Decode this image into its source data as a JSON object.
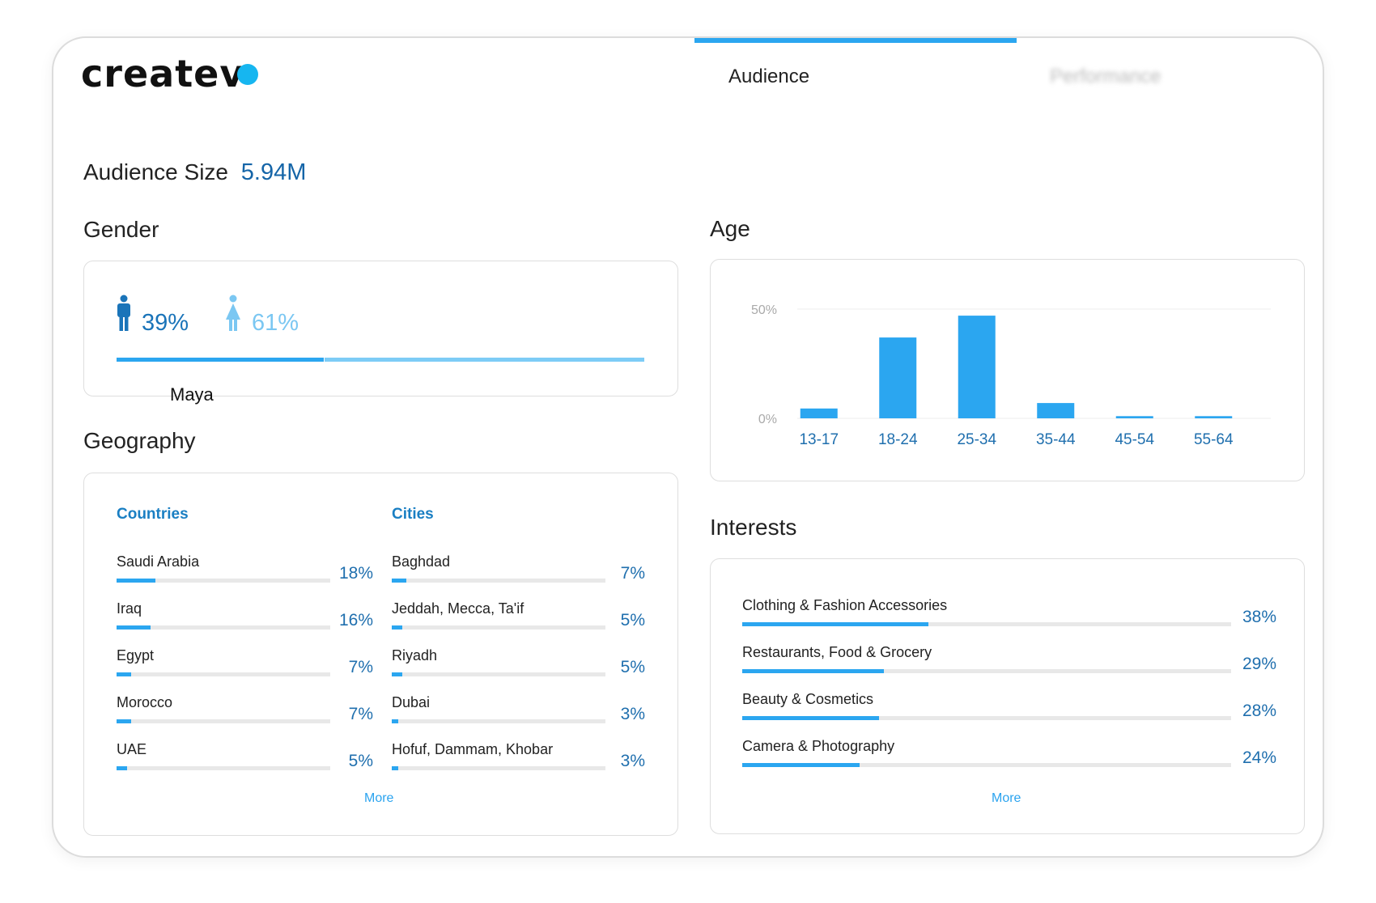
{
  "brand": {
    "logo_text": "createv",
    "accent": "#16b6f0"
  },
  "tabs": [
    {
      "label": "Audience",
      "active": true
    },
    {
      "label": "Performance",
      "active": false
    }
  ],
  "audience_size": {
    "label": "Audience Size",
    "value": "5.94M"
  },
  "gender": {
    "title": "Gender",
    "male": {
      "icon": "male-person-icon",
      "percent_label": "39%",
      "share": 0.39
    },
    "female": {
      "icon": "female-person-icon",
      "percent_label": "61%",
      "share": 0.61
    },
    "name_label": "Maya"
  },
  "age": {
    "title": "Age"
  },
  "chart_data": {
    "type": "bar",
    "categories": [
      "13-17",
      "18-24",
      "25-34",
      "35-44",
      "45-54",
      "55-64"
    ],
    "values": [
      4.5,
      37,
      47,
      7,
      1,
      1
    ],
    "y_tick_labels": [
      "0%",
      "50%"
    ],
    "ylim": [
      0,
      50
    ],
    "grid": true,
    "color": "#2ba6f0",
    "title": "",
    "xlabel": "",
    "ylabel": ""
  },
  "geography": {
    "title": "Geography",
    "countries": {
      "header": "Countries",
      "items": [
        {
          "name": "Saudi Arabia",
          "percent": "18%",
          "share": 0.18
        },
        {
          "name": "Iraq",
          "percent": "16%",
          "share": 0.16
        },
        {
          "name": "Egypt",
          "percent": "7%",
          "share": 0.07
        },
        {
          "name": "Morocco",
          "percent": "7%",
          "share": 0.07
        },
        {
          "name": "UAE",
          "percent": "5%",
          "share": 0.05
        }
      ]
    },
    "cities": {
      "header": "Cities",
      "items": [
        {
          "name": "Baghdad",
          "percent": "7%",
          "share": 0.07
        },
        {
          "name": "Jeddah, Mecca, Ta'if",
          "percent": "5%",
          "share": 0.05
        },
        {
          "name": "Riyadh",
          "percent": "5%",
          "share": 0.05
        },
        {
          "name": "Dubai",
          "percent": "3%",
          "share": 0.03
        },
        {
          "name": "Hofuf, Dammam, Khobar",
          "percent": "3%",
          "share": 0.03
        }
      ]
    },
    "more_label": "More"
  },
  "interests": {
    "title": "Interests",
    "items": [
      {
        "name": "Clothing & Fashion Accessories",
        "percent": "38%",
        "share": 0.38
      },
      {
        "name": "Restaurants, Food & Grocery",
        "percent": "29%",
        "share": 0.29
      },
      {
        "name": "Beauty & Cosmetics",
        "percent": "28%",
        "share": 0.28
      },
      {
        "name": "Camera & Photography",
        "percent": "24%",
        "share": 0.24
      }
    ],
    "more_label": "More"
  }
}
